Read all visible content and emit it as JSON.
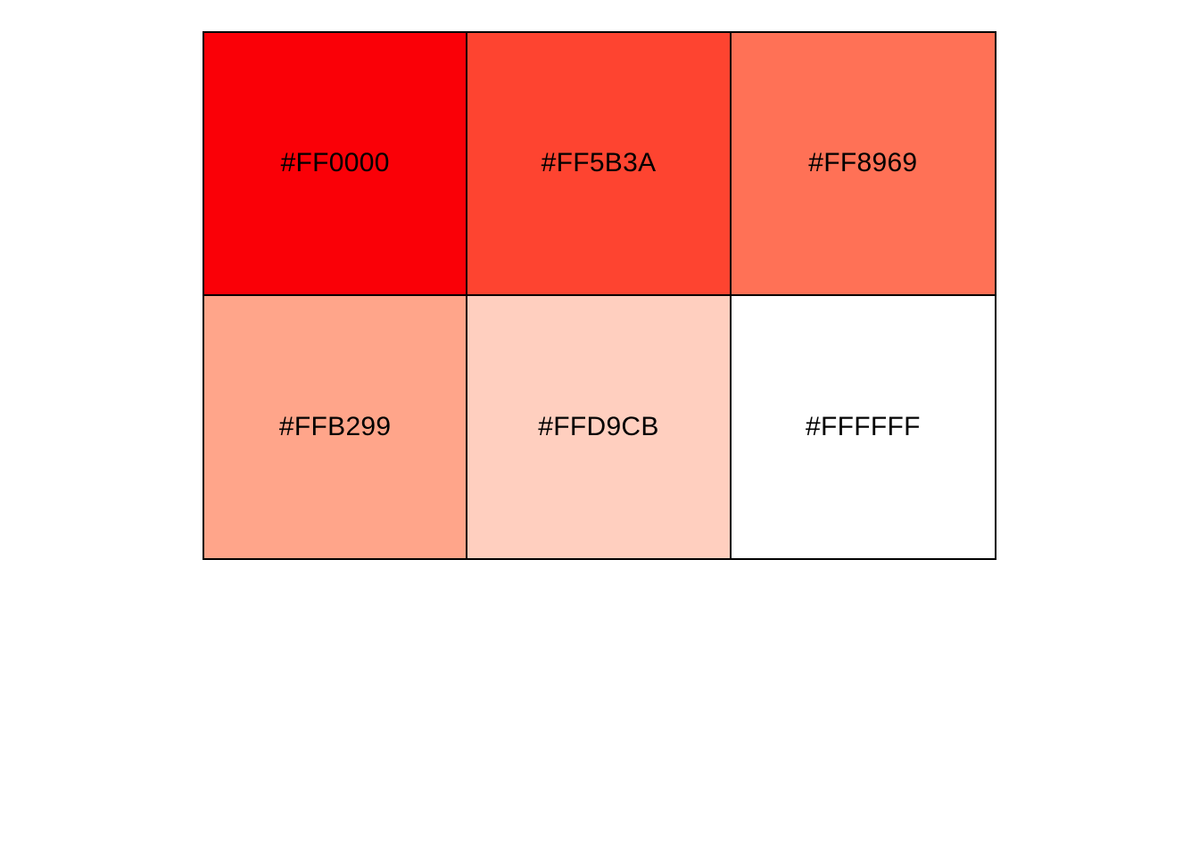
{
  "swatches": [
    {
      "label": "#FF0000",
      "color": "#FA0007"
    },
    {
      "label": "#FF5B3A",
      "color": "#FE4430"
    },
    {
      "label": "#FF8969",
      "color": "#FF7156"
    },
    {
      "label": "#FFB299",
      "color": "#FFA58A"
    },
    {
      "label": "#FFD9CB",
      "color": "#FFCFBF"
    },
    {
      "label": "#FFFFFF",
      "color": "#FFFFFF"
    }
  ]
}
